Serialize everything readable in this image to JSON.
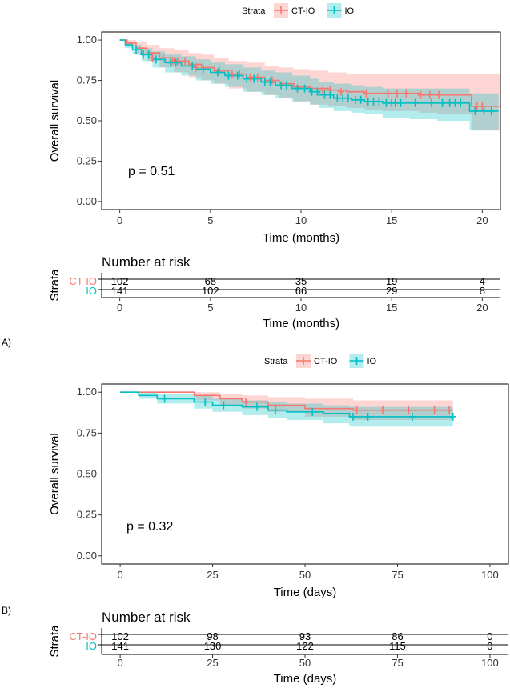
{
  "legend_title": "Strata",
  "groups": [
    {
      "name": "CT-IO",
      "color": "#F8766D"
    },
    {
      "name": "IO",
      "color": "#00BFC4"
    }
  ],
  "axis_color": "#333333",
  "chart_data": [
    {
      "type": "line",
      "panel_label": "A)",
      "title": "",
      "xlabel": "Time (months)",
      "ylabel": "Overall survival",
      "xlim": [
        -1,
        21
      ],
      "ylim": [
        -0.05,
        1.05
      ],
      "x_ticks": [
        0,
        5,
        10,
        15,
        20
      ],
      "y_ticks": [
        0.0,
        0.25,
        0.5,
        0.75,
        1.0
      ],
      "y_tick_labels": [
        "0.00",
        "0.25",
        "0.50",
        "0.75",
        "1.00"
      ],
      "pvalue": "p = 0.51",
      "series": [
        {
          "name": "CT-IO",
          "x": [
            0,
            0.4,
            0.9,
            1.5,
            2.2,
            3.0,
            3.8,
            4.5,
            5.2,
            6.0,
            7.0,
            8.0,
            8.8,
            9.6,
            10.5,
            11.5,
            12.5,
            13.5,
            14.5,
            15.5,
            16.5,
            17.5,
            19.4
          ],
          "y": [
            1.0,
            0.98,
            0.95,
            0.92,
            0.89,
            0.87,
            0.85,
            0.83,
            0.81,
            0.79,
            0.77,
            0.75,
            0.73,
            0.71,
            0.7,
            0.69,
            0.68,
            0.67,
            0.67,
            0.67,
            0.66,
            0.66,
            0.59
          ],
          "lower": [
            1.0,
            0.96,
            0.91,
            0.87,
            0.83,
            0.8,
            0.77,
            0.75,
            0.73,
            0.7,
            0.68,
            0.66,
            0.64,
            0.62,
            0.6,
            0.59,
            0.58,
            0.57,
            0.56,
            0.56,
            0.55,
            0.54,
            0.44
          ],
          "upper": [
            1.0,
            1.0,
            0.99,
            0.97,
            0.95,
            0.94,
            0.92,
            0.91,
            0.89,
            0.87,
            0.86,
            0.84,
            0.83,
            0.82,
            0.81,
            0.8,
            0.79,
            0.79,
            0.79,
            0.79,
            0.79,
            0.79,
            0.79
          ],
          "censor_x": [
            1.8,
            2.4,
            2.9,
            3.2,
            3.6,
            4.2,
            5.5,
            6.2,
            6.6,
            7.2,
            7.6,
            8.4,
            11.2,
            11.6,
            12.2,
            13.6,
            14.8,
            15.3,
            15.8,
            16.6,
            17.1,
            17.6,
            19.7,
            20.0
          ],
          "censor_y": [
            0.89,
            0.89,
            0.87,
            0.87,
            0.87,
            0.83,
            0.81,
            0.79,
            0.79,
            0.77,
            0.77,
            0.75,
            0.69,
            0.69,
            0.68,
            0.67,
            0.67,
            0.67,
            0.67,
            0.66,
            0.66,
            0.66,
            0.59,
            0.59
          ]
        },
        {
          "name": "IO",
          "x": [
            0,
            0.3,
            0.7,
            1.2,
            1.8,
            2.5,
            3.4,
            4.2,
            5.0,
            5.8,
            6.8,
            7.8,
            8.6,
            9.5,
            10.5,
            11.0,
            11.8,
            12.8,
            13.5,
            14.5,
            16.0,
            17.5,
            19.3
          ],
          "y": [
            1.0,
            0.97,
            0.94,
            0.91,
            0.88,
            0.86,
            0.84,
            0.82,
            0.8,
            0.78,
            0.76,
            0.74,
            0.72,
            0.7,
            0.68,
            0.66,
            0.64,
            0.63,
            0.62,
            0.61,
            0.61,
            0.61,
            0.56
          ],
          "lower": [
            1.0,
            0.95,
            0.91,
            0.87,
            0.83,
            0.8,
            0.78,
            0.75,
            0.73,
            0.71,
            0.68,
            0.66,
            0.64,
            0.62,
            0.6,
            0.58,
            0.56,
            0.55,
            0.54,
            0.52,
            0.51,
            0.5,
            0.44
          ],
          "upper": [
            1.0,
            0.99,
            0.97,
            0.95,
            0.93,
            0.91,
            0.9,
            0.88,
            0.86,
            0.85,
            0.83,
            0.81,
            0.8,
            0.78,
            0.76,
            0.74,
            0.73,
            0.72,
            0.71,
            0.7,
            0.7,
            0.7,
            0.67
          ],
          "censor_x": [
            0.9,
            1.3,
            1.6,
            2.0,
            2.8,
            3.1,
            4.0,
            4.6,
            5.4,
            6.0,
            6.5,
            7.0,
            7.4,
            8.0,
            8.3,
            8.9,
            9.2,
            9.8,
            10.2,
            10.6,
            10.9,
            11.3,
            11.6,
            12.0,
            12.3,
            12.6,
            13.0,
            13.3,
            13.7,
            14.0,
            14.3,
            14.7,
            15.0,
            15.2,
            15.5,
            16.3,
            17.2,
            17.8,
            18.2,
            18.5,
            18.8,
            19.6,
            20.1,
            20.5
          ],
          "censor_y": [
            0.94,
            0.91,
            0.91,
            0.88,
            0.86,
            0.86,
            0.84,
            0.82,
            0.8,
            0.78,
            0.78,
            0.76,
            0.76,
            0.74,
            0.74,
            0.72,
            0.72,
            0.7,
            0.7,
            0.68,
            0.68,
            0.66,
            0.66,
            0.64,
            0.64,
            0.64,
            0.63,
            0.63,
            0.62,
            0.62,
            0.62,
            0.61,
            0.61,
            0.61,
            0.61,
            0.61,
            0.61,
            0.61,
            0.61,
            0.61,
            0.61,
            0.56,
            0.56,
            0.56
          ]
        }
      ],
      "risk_table": {
        "title": "Number at risk",
        "strata_label": "Strata",
        "xlabel": "Time (months)",
        "times": [
          0,
          5,
          10,
          15,
          20
        ],
        "rows": [
          {
            "name": "CT-IO",
            "values": [
              "102",
              "68",
              "35",
              "19",
              "4"
            ]
          },
          {
            "name": "IO",
            "values": [
              "141",
              "102",
              "66",
              "29",
              "8"
            ]
          }
        ]
      }
    },
    {
      "type": "line",
      "panel_label": "B)",
      "title": "",
      "xlabel": "Time (days)",
      "ylabel": "Overall survival",
      "xlim": [
        -5,
        105
      ],
      "ylim": [
        -0.05,
        1.05
      ],
      "x_ticks": [
        0,
        25,
        50,
        75,
        100
      ],
      "y_ticks": [
        0.0,
        0.25,
        0.5,
        0.75,
        1.0
      ],
      "y_tick_labels": [
        "0.00",
        "0.25",
        "0.50",
        "0.75",
        "1.00"
      ],
      "pvalue": "p = 0.32",
      "series": [
        {
          "name": "CT-IO",
          "x": [
            0,
            20,
            27,
            33,
            40,
            50,
            63,
            90
          ],
          "y": [
            1.0,
            0.98,
            0.96,
            0.94,
            0.92,
            0.9,
            0.89,
            0.89
          ],
          "lower": [
            1.0,
            0.95,
            0.92,
            0.9,
            0.88,
            0.85,
            0.83,
            0.83
          ],
          "upper": [
            1.0,
            1.0,
            0.99,
            0.98,
            0.97,
            0.96,
            0.95,
            0.95
          ],
          "censor_x": [
            34,
            64,
            71,
            78,
            85,
            89
          ],
          "censor_y": [
            0.94,
            0.89,
            0.89,
            0.89,
            0.89,
            0.89
          ]
        },
        {
          "name": "IO",
          "x": [
            0,
            5,
            10,
            20,
            25,
            33,
            40,
            45,
            55,
            62,
            90
          ],
          "y": [
            1.0,
            0.98,
            0.96,
            0.94,
            0.92,
            0.91,
            0.89,
            0.88,
            0.87,
            0.85,
            0.85
          ],
          "lower": [
            1.0,
            0.96,
            0.93,
            0.9,
            0.88,
            0.86,
            0.84,
            0.83,
            0.81,
            0.79,
            0.79
          ],
          "upper": [
            1.0,
            1.0,
            0.99,
            0.98,
            0.96,
            0.95,
            0.94,
            0.93,
            0.92,
            0.91,
            0.91
          ],
          "censor_x": [
            12,
            23,
            28,
            37,
            42,
            52,
            63,
            67,
            79,
            90
          ],
          "censor_y": [
            0.96,
            0.94,
            0.92,
            0.91,
            0.89,
            0.88,
            0.85,
            0.85,
            0.85,
            0.85
          ]
        }
      ],
      "risk_table": {
        "title": "Number at risk",
        "strata_label": "Strata",
        "xlabel": "Time (days)",
        "times": [
          0,
          25,
          50,
          75,
          100
        ],
        "rows": [
          {
            "name": "CT-IO",
            "values": [
              "102",
              "98",
              "93",
              "86",
              "0"
            ]
          },
          {
            "name": "IO",
            "values": [
              "141",
              "130",
              "122",
              "115",
              "0"
            ]
          }
        ]
      }
    }
  ]
}
